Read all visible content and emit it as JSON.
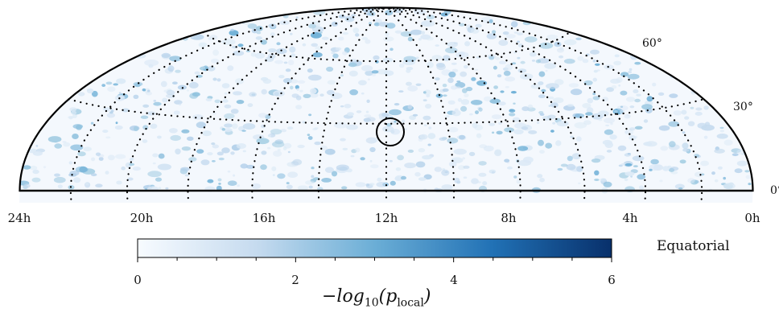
{
  "projection": "Hammer-Aitoff (northern hemisphere, Equatorial coordinates)",
  "coordinate_system_label": "Equatorial",
  "ra_labels": [
    "24h",
    "20h",
    "16h",
    "12h",
    "8h",
    "4h",
    "0h"
  ],
  "dec_labels": {
    "d60": "60°",
    "d30": "30°",
    "d0": "0°"
  },
  "colorbar": {
    "label_prefix": "−log",
    "label_sub": "10",
    "label_p": "(p",
    "label_p_sub": "local",
    "label_close": ")",
    "ticks": [
      "0",
      "2",
      "4",
      "6"
    ],
    "range": [
      0,
      6
    ],
    "colormap": [
      "#f7fbff",
      "#c6dbef",
      "#6baed6",
      "#2171b5",
      "#08306b"
    ]
  },
  "hotspot": {
    "ra_hours": 12,
    "dec_deg": 20,
    "label": ""
  },
  "colors": {
    "outline": "#000000",
    "grid": "#000000",
    "map_base": "#eef5fc"
  }
}
